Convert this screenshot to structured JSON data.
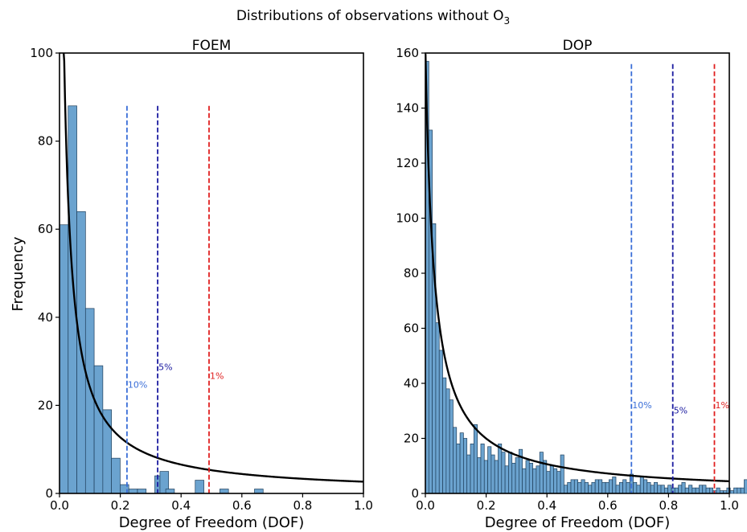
{
  "figure": {
    "suptitle": "Distributions of observations without O",
    "suptitle_sub": "3",
    "ylabel": "Frequency"
  },
  "chart_data": [
    {
      "type": "bar",
      "title": "FOEM",
      "xlabel": "Degree of Freedom (DOF)",
      "ylabel": "Frequency",
      "xlim": [
        0,
        1.0
      ],
      "ylim": [
        0,
        100
      ],
      "xticks": [
        "0.0",
        "0.2",
        "0.4",
        "0.6",
        "0.8",
        "1.0"
      ],
      "yticks": [
        "0",
        "20",
        "40",
        "60",
        "80",
        "100"
      ],
      "bin_width": 0.0285,
      "bar_color": "#6ba3cf",
      "bar_edge": "#1f3f5c",
      "bins": [
        {
          "x": 0.0,
          "value": 61
        },
        {
          "x": 0.0285,
          "value": 88
        },
        {
          "x": 0.057,
          "value": 64
        },
        {
          "x": 0.0855,
          "value": 42
        },
        {
          "x": 0.114,
          "value": 29
        },
        {
          "x": 0.1425,
          "value": 19
        },
        {
          "x": 0.171,
          "value": 8
        },
        {
          "x": 0.1995,
          "value": 2
        },
        {
          "x": 0.228,
          "value": 1
        },
        {
          "x": 0.2565,
          "value": 1
        },
        {
          "x": 0.285,
          "value": 0
        },
        {
          "x": 0.3135,
          "value": 4
        },
        {
          "x": 0.3305,
          "value": 5
        },
        {
          "x": 0.3495,
          "value": 1
        },
        {
          "x": 0.4465,
          "value": 3
        },
        {
          "x": 0.5275,
          "value": 1
        },
        {
          "x": 0.6415,
          "value": 1
        }
      ],
      "fit_curve": {
        "a": 2.7,
        "b": 0.012,
        "color": "#000000"
      },
      "thresholds": [
        {
          "label": "10%",
          "x": 0.222,
          "color": "#3b6fd8",
          "label_y": 24
        },
        {
          "label": "5%",
          "x": 0.323,
          "color": "#1a1aa0",
          "label_y": 28
        },
        {
          "label": "1%",
          "x": 0.492,
          "color": "#e02020",
          "label_y": 26
        }
      ],
      "threshold_top": 88
    },
    {
      "type": "bar",
      "title": "DOP",
      "xlabel": "Degree of Freedom (DOF)",
      "ylabel": "",
      "xlim": [
        0,
        1.0
      ],
      "ylim": [
        0,
        160
      ],
      "xticks": [
        "0.0",
        "0.2",
        "0.4",
        "0.6",
        "0.8",
        "1.0"
      ],
      "yticks": [
        "0",
        "20",
        "40",
        "60",
        "80",
        "100",
        "120",
        "140",
        "160"
      ],
      "bin_width": 0.0114,
      "bar_color": "#6ba3cf",
      "bar_edge": "#1f3f5c",
      "values": [
        157,
        132,
        98,
        62,
        52,
        42,
        38,
        34,
        24,
        18,
        22,
        20,
        14,
        18,
        25,
        13,
        18,
        12,
        17,
        14,
        12,
        18,
        15,
        10,
        15,
        11,
        13,
        16,
        9,
        12,
        11,
        9,
        10,
        15,
        12,
        8,
        10,
        9,
        8,
        14,
        3,
        4,
        5,
        5,
        4,
        5,
        4,
        3,
        4,
        5,
        5,
        4,
        4,
        5,
        6,
        3,
        4,
        5,
        4,
        7,
        4,
        3,
        6,
        5,
        4,
        3,
        4,
        3,
        3,
        2,
        3,
        2,
        2,
        3,
        4,
        2,
        3,
        2,
        2,
        3,
        3,
        2,
        2,
        1,
        2,
        1,
        1,
        2,
        1,
        2,
        2,
        2,
        5,
        2,
        2,
        2,
        1,
        2,
        3,
        2,
        1,
        3
      ],
      "fit_curve": {
        "a": 4.55,
        "b": 0.028,
        "color": "#000000"
      },
      "thresholds": [
        {
          "label": "10%",
          "x": 0.678,
          "color": "#3b6fd8",
          "label_y": 31
        },
        {
          "label": "5%",
          "x": 0.814,
          "color": "#1a1aa0",
          "label_y": 29
        },
        {
          "label": "1%",
          "x": 0.951,
          "color": "#e02020",
          "label_y": 31
        }
      ],
      "threshold_top": 156
    }
  ]
}
